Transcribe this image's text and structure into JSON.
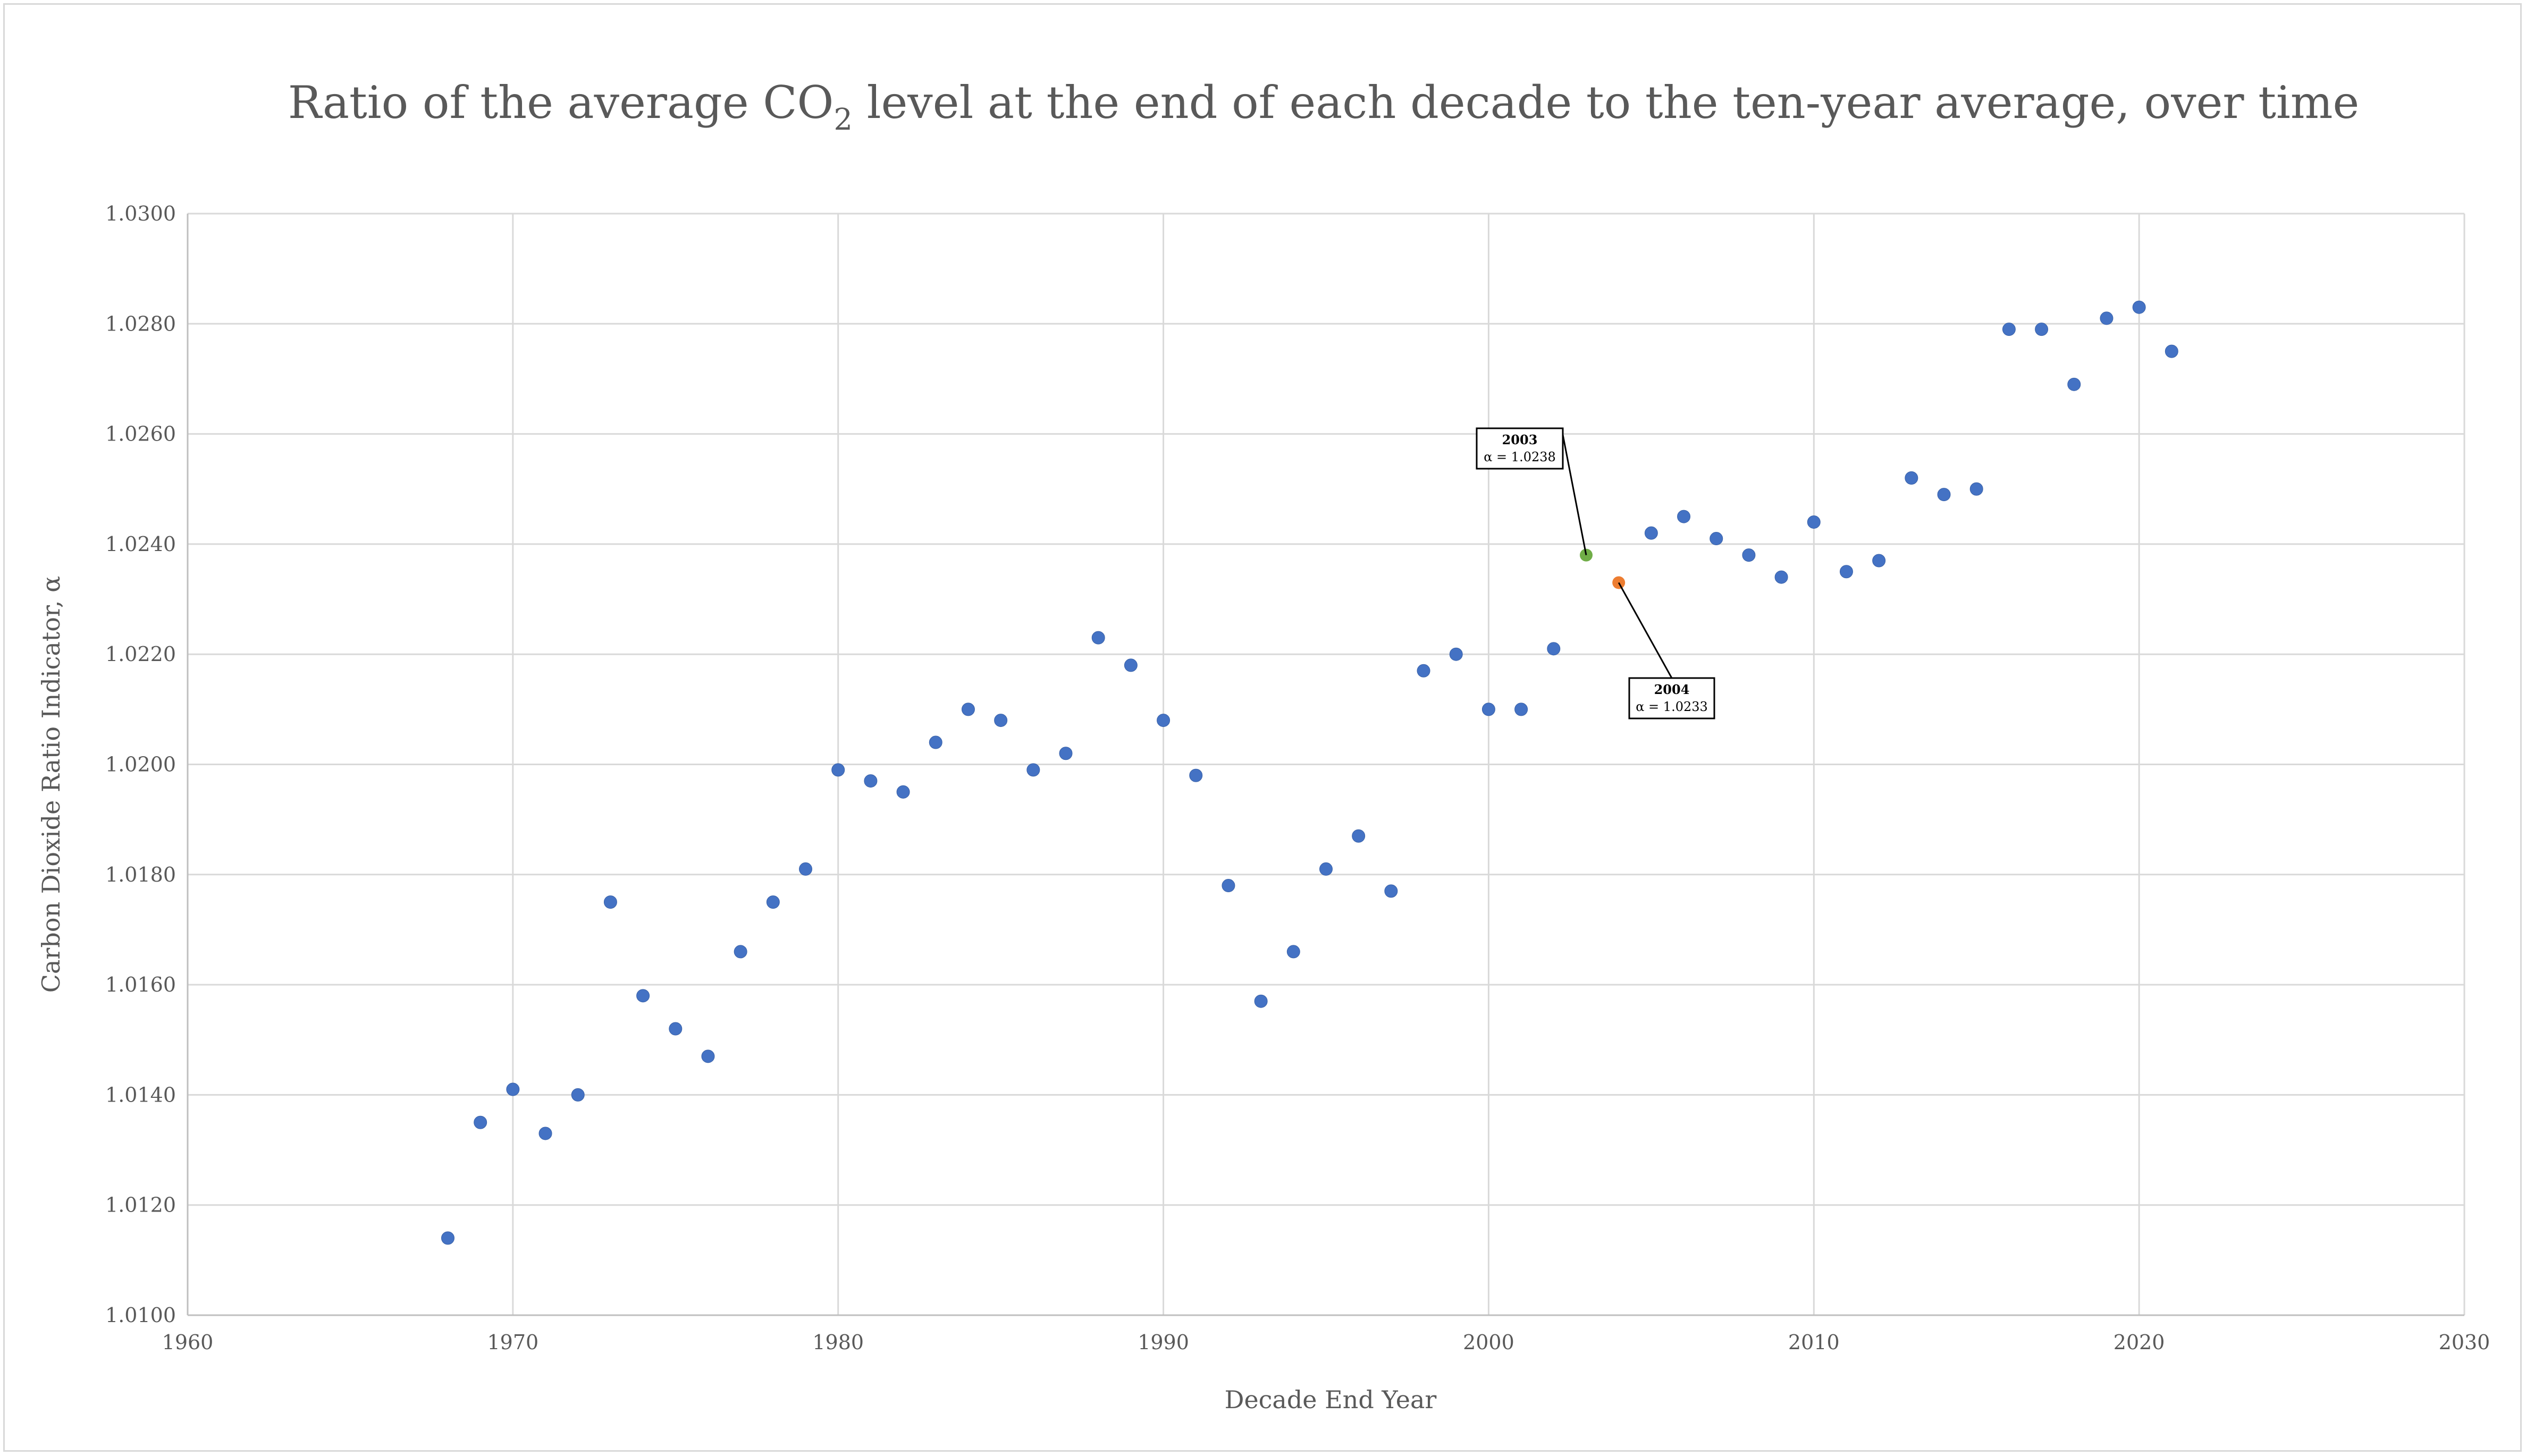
{
  "chart_data": {
    "type": "scatter",
    "title": "Ratio of the average CO",
    "title_subscript": "2",
    "title_tail": " level at the end of each decade to the ten-year average, over time",
    "xlabel": "Decade End Year",
    "ylabel": "Carbon Dioxide Ratio Indicator, α",
    "xlim": [
      1960,
      2030
    ],
    "ylim": [
      1.01,
      1.03
    ],
    "x_ticks": [
      1960,
      1970,
      1980,
      1990,
      2000,
      2010,
      2020,
      2030
    ],
    "x_tick_labels": [
      "1960",
      "1970",
      "1980",
      "1990",
      "2000",
      "2010",
      "2020",
      "2030"
    ],
    "y_ticks": [
      1.01,
      1.012,
      1.014,
      1.016,
      1.018,
      1.02,
      1.022,
      1.024,
      1.026,
      1.028,
      1.03
    ],
    "y_tick_labels": [
      "1.0100",
      "1.0120",
      "1.0140",
      "1.0160",
      "1.0180",
      "1.0200",
      "1.0220",
      "1.0240",
      "1.0260",
      "1.0280",
      "1.0300"
    ],
    "grid": true,
    "colors": {
      "point": "#4472c4",
      "highlight_2003": "#70ad47",
      "highlight_2004": "#ed7d31",
      "grid": "#d9d9d9",
      "text": "#595959"
    },
    "series": [
      {
        "x": [
          1968,
          1969,
          1970,
          1971,
          1972,
          1973,
          1974,
          1975,
          1976,
          1977,
          1978,
          1979,
          1980,
          1981,
          1982,
          1983,
          1984,
          1985,
          1986,
          1987,
          1988,
          1989,
          1990,
          1991,
          1992,
          1993,
          1994,
          1995,
          1996,
          1997,
          1998,
          1999,
          2000,
          2001,
          2002,
          2003,
          2004,
          2005,
          2006,
          2007,
          2008,
          2009,
          2010,
          2011,
          2012,
          2013,
          2014,
          2015,
          2016,
          2017,
          2018,
          2019,
          2020,
          2021
        ],
        "y": [
          1.0114,
          1.0135,
          1.0141,
          1.0133,
          1.014,
          1.0175,
          1.0158,
          1.0152,
          1.0147,
          1.0166,
          1.0175,
          1.0181,
          1.0199,
          1.0197,
          1.0195,
          1.0204,
          1.021,
          1.0208,
          1.0199,
          1.0202,
          1.0223,
          1.0218,
          1.0208,
          1.0198,
          1.0178,
          1.0157,
          1.0166,
          1.0181,
          1.0187,
          1.0177,
          1.0217,
          1.022,
          1.021,
          1.021,
          1.0221,
          1.0238,
          1.0233,
          1.0242,
          1.0245,
          1.0241,
          1.0238,
          1.0234,
          1.0244,
          1.0235,
          1.0237,
          1.0252,
          1.0249,
          1.025,
          1.0279,
          1.0279,
          1.0269,
          1.0281,
          1.0283,
          1.0275
        ]
      }
    ],
    "annotations": [
      {
        "year_label": "2003",
        "value_label": "α = 1.0238",
        "x": 2003,
        "y": 1.0238,
        "color_key": "highlight_2003"
      },
      {
        "year_label": "2004",
        "value_label": "α = 1.0233",
        "x": 2004,
        "y": 1.0233,
        "color_key": "highlight_2004"
      }
    ]
  }
}
